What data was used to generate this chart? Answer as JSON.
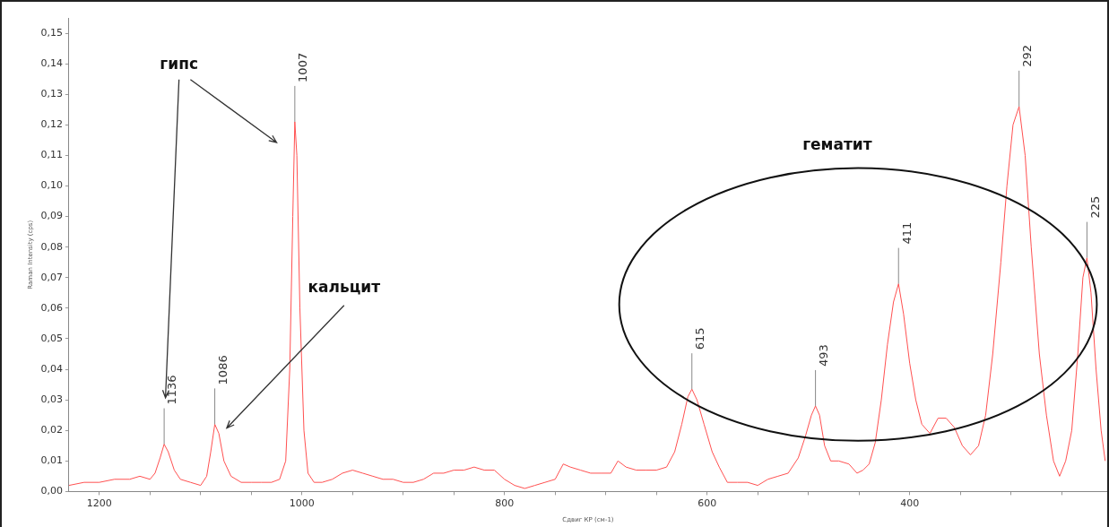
{
  "chart_data": {
    "type": "line",
    "xlabel": "Сдвиг КР (см-1)",
    "ylabel": "Raman Intensity (cps)",
    "marker": "none",
    "grid": false,
    "legend": false,
    "xlim": [
      1230,
      205
    ],
    "xticks": [
      1200,
      {
        "value": 1150,
        "label": null
      },
      {
        "value": 1100,
        "label": null
      },
      {
        "value": 1050,
        "label": null
      },
      1000,
      {
        "value": 950,
        "label": null
      },
      {
        "value": 900,
        "label": null
      },
      {
        "value": 850,
        "label": null
      },
      800,
      {
        "value": 750,
        "label": null
      },
      {
        "value": 700,
        "label": null
      },
      {
        "value": 650,
        "label": null
      },
      600,
      {
        "value": 550,
        "label": null
      },
      {
        "value": 500,
        "label": null
      },
      {
        "value": 450,
        "label": null
      },
      400,
      {
        "value": 350,
        "label": null
      },
      {
        "value": 300,
        "label": null
      },
      {
        "value": 250,
        "label": null
      }
    ],
    "ylim": [
      0,
      0.155
    ],
    "yticks": [
      {
        "value": 0,
        "label": "0,00"
      },
      {
        "value": 0.01,
        "label": "0,01"
      },
      {
        "value": 0.02,
        "label": "0,02"
      },
      {
        "value": 0.03,
        "label": "0,03"
      },
      {
        "value": 0.04,
        "label": "0,04"
      },
      {
        "value": 0.05,
        "label": "0,05"
      },
      {
        "value": 0.06,
        "label": "0,06"
      },
      {
        "value": 0.07,
        "label": "0,07"
      },
      {
        "value": 0.08,
        "label": "0,08"
      },
      {
        "value": 0.09,
        "label": "0,09"
      },
      {
        "value": 0.1,
        "label": "0,10"
      },
      {
        "value": 0.11,
        "label": "0,11"
      },
      {
        "value": 0.12,
        "label": "0,12"
      },
      {
        "value": 0.13,
        "label": "0,13"
      },
      {
        "value": 0.14,
        "label": "0,14"
      },
      {
        "value": 0.15,
        "label": "0,15"
      }
    ],
    "series": [
      {
        "color": "#ff5050",
        "x": [
          1230,
          1215,
          1200,
          1185,
          1170,
          1160,
          1150,
          1145,
          1140,
          1136,
          1132,
          1126,
          1120,
          1110,
          1100,
          1094,
          1090,
          1086,
          1082,
          1077,
          1070,
          1060,
          1050,
          1040,
          1030,
          1022,
          1016,
          1012,
          1009,
          1007,
          1005,
          1002,
          998,
          994,
          988,
          980,
          970,
          960,
          950,
          940,
          930,
          920,
          910,
          900,
          890,
          880,
          870,
          860,
          850,
          840,
          830,
          820,
          810,
          800,
          790,
          780,
          770,
          760,
          750,
          742,
          735,
          725,
          715,
          705,
          695,
          688,
          680,
          670,
          660,
          650,
          640,
          632,
          625,
          619,
          615,
          610,
          603,
          595,
          588,
          580,
          570,
          560,
          550,
          540,
          530,
          520,
          510,
          503,
          497,
          493,
          489,
          484,
          478,
          470,
          460,
          452,
          446,
          440,
          434,
          428,
          422,
          416,
          411,
          406,
          400,
          394,
          388,
          380,
          372,
          364,
          356,
          348,
          340,
          332,
          325,
          318,
          310,
          304,
          298,
          292,
          286,
          280,
          272,
          265,
          258,
          252,
          246,
          240,
          234,
          229,
          225,
          221,
          216,
          211,
          207
        ],
        "values": [
          0.002,
          0.003,
          0.003,
          0.004,
          0.004,
          0.005,
          0.004,
          0.006,
          0.011,
          0.0155,
          0.013,
          0.007,
          0.004,
          0.003,
          0.002,
          0.005,
          0.013,
          0.022,
          0.019,
          0.01,
          0.005,
          0.003,
          0.003,
          0.003,
          0.003,
          0.004,
          0.01,
          0.04,
          0.09,
          0.121,
          0.11,
          0.06,
          0.02,
          0.006,
          0.003,
          0.003,
          0.004,
          0.006,
          0.007,
          0.006,
          0.005,
          0.004,
          0.004,
          0.003,
          0.003,
          0.004,
          0.006,
          0.006,
          0.007,
          0.007,
          0.008,
          0.007,
          0.007,
          0.004,
          0.002,
          0.001,
          0.002,
          0.003,
          0.004,
          0.009,
          0.008,
          0.007,
          0.006,
          0.006,
          0.006,
          0.01,
          0.008,
          0.007,
          0.007,
          0.007,
          0.008,
          0.013,
          0.022,
          0.031,
          0.0335,
          0.03,
          0.022,
          0.013,
          0.008,
          0.003,
          0.003,
          0.003,
          0.002,
          0.004,
          0.005,
          0.006,
          0.011,
          0.018,
          0.025,
          0.028,
          0.025,
          0.015,
          0.01,
          0.01,
          0.009,
          0.006,
          0.007,
          0.009,
          0.016,
          0.03,
          0.048,
          0.062,
          0.068,
          0.058,
          0.042,
          0.03,
          0.022,
          0.019,
          0.024,
          0.024,
          0.021,
          0.015,
          0.012,
          0.015,
          0.025,
          0.045,
          0.075,
          0.1,
          0.12,
          0.126,
          0.11,
          0.08,
          0.045,
          0.025,
          0.01,
          0.005,
          0.01,
          0.02,
          0.045,
          0.07,
          0.0765,
          0.065,
          0.04,
          0.02,
          0.01
        ]
      }
    ],
    "annotations": [
      {
        "text": "1136",
        "x": 1136,
        "y": 0.0155
      },
      {
        "text": "1086",
        "x": 1086,
        "y": 0.022
      },
      {
        "text": "1007",
        "x": 1007,
        "y": 0.121
      },
      {
        "text": "615",
        "x": 615,
        "y": 0.0335
      },
      {
        "text": "493",
        "x": 493,
        "y": 0.028
      },
      {
        "text": "411",
        "x": 411,
        "y": 0.068
      },
      {
        "text": "292",
        "x": 292,
        "y": 0.126
      },
      {
        "text": "225",
        "x": 225,
        "y": 0.0765
      },
      "гипс",
      "кальцит",
      "гематит"
    ]
  }
}
